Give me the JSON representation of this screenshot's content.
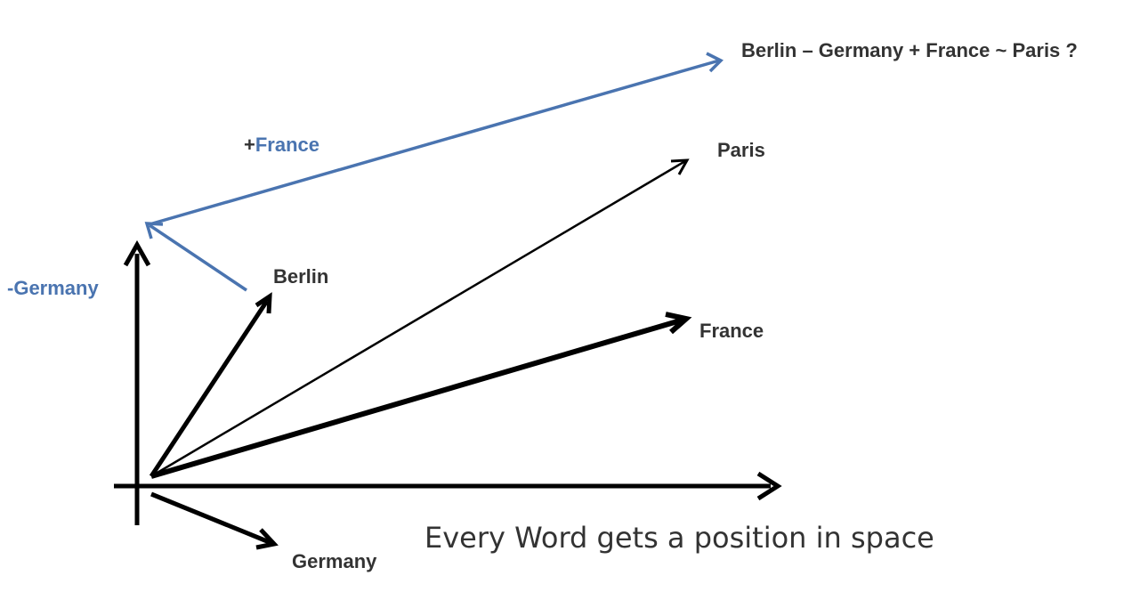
{
  "diagram": {
    "equation": "Berlin – Germany + France ~ Paris ?",
    "labels": {
      "paris": "Paris",
      "berlin": "Berlin",
      "france": "France",
      "germany": "Germany",
      "minus_germany": "-Germany",
      "plus_sign": "+",
      "plus_france_word": "France"
    },
    "caption": "Every Word gets a position in space",
    "colors": {
      "vector_black": "#000000",
      "vector_blue": "#4a74b0",
      "text_dark": "#333333"
    }
  }
}
